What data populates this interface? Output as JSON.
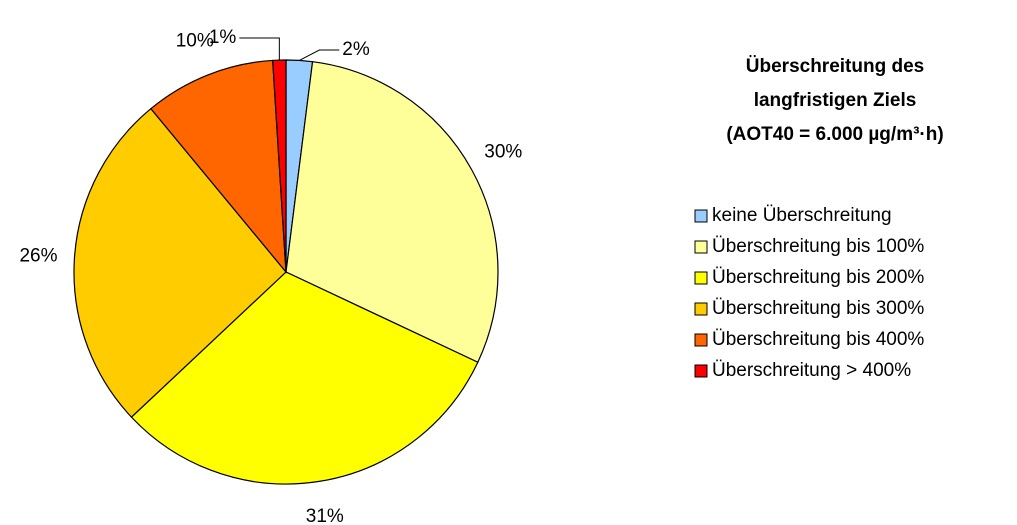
{
  "chart_data": {
    "type": "pie",
    "title": [
      "Überschreitung des",
      "langfristigen Ziels",
      "(AOT40 = 6.000 µg/m³·h)"
    ],
    "categories": [
      "keine Überschreitung",
      "Überschreitung bis 100%",
      "Überschreitung bis 200%",
      "Überschreitung bis 300%",
      "Überschreitung bis 400%",
      "Überschreitung > 400%"
    ],
    "values": [
      2,
      30,
      31,
      26,
      10,
      1
    ],
    "value_labels": [
      "2%",
      "30%",
      "31%",
      "26%",
      "10%",
      "1%"
    ],
    "colors": [
      "#99ccff",
      "#ffff99",
      "#ffff00",
      "#ffcc00",
      "#ff6600",
      "#ff0000"
    ],
    "legend": "right"
  }
}
